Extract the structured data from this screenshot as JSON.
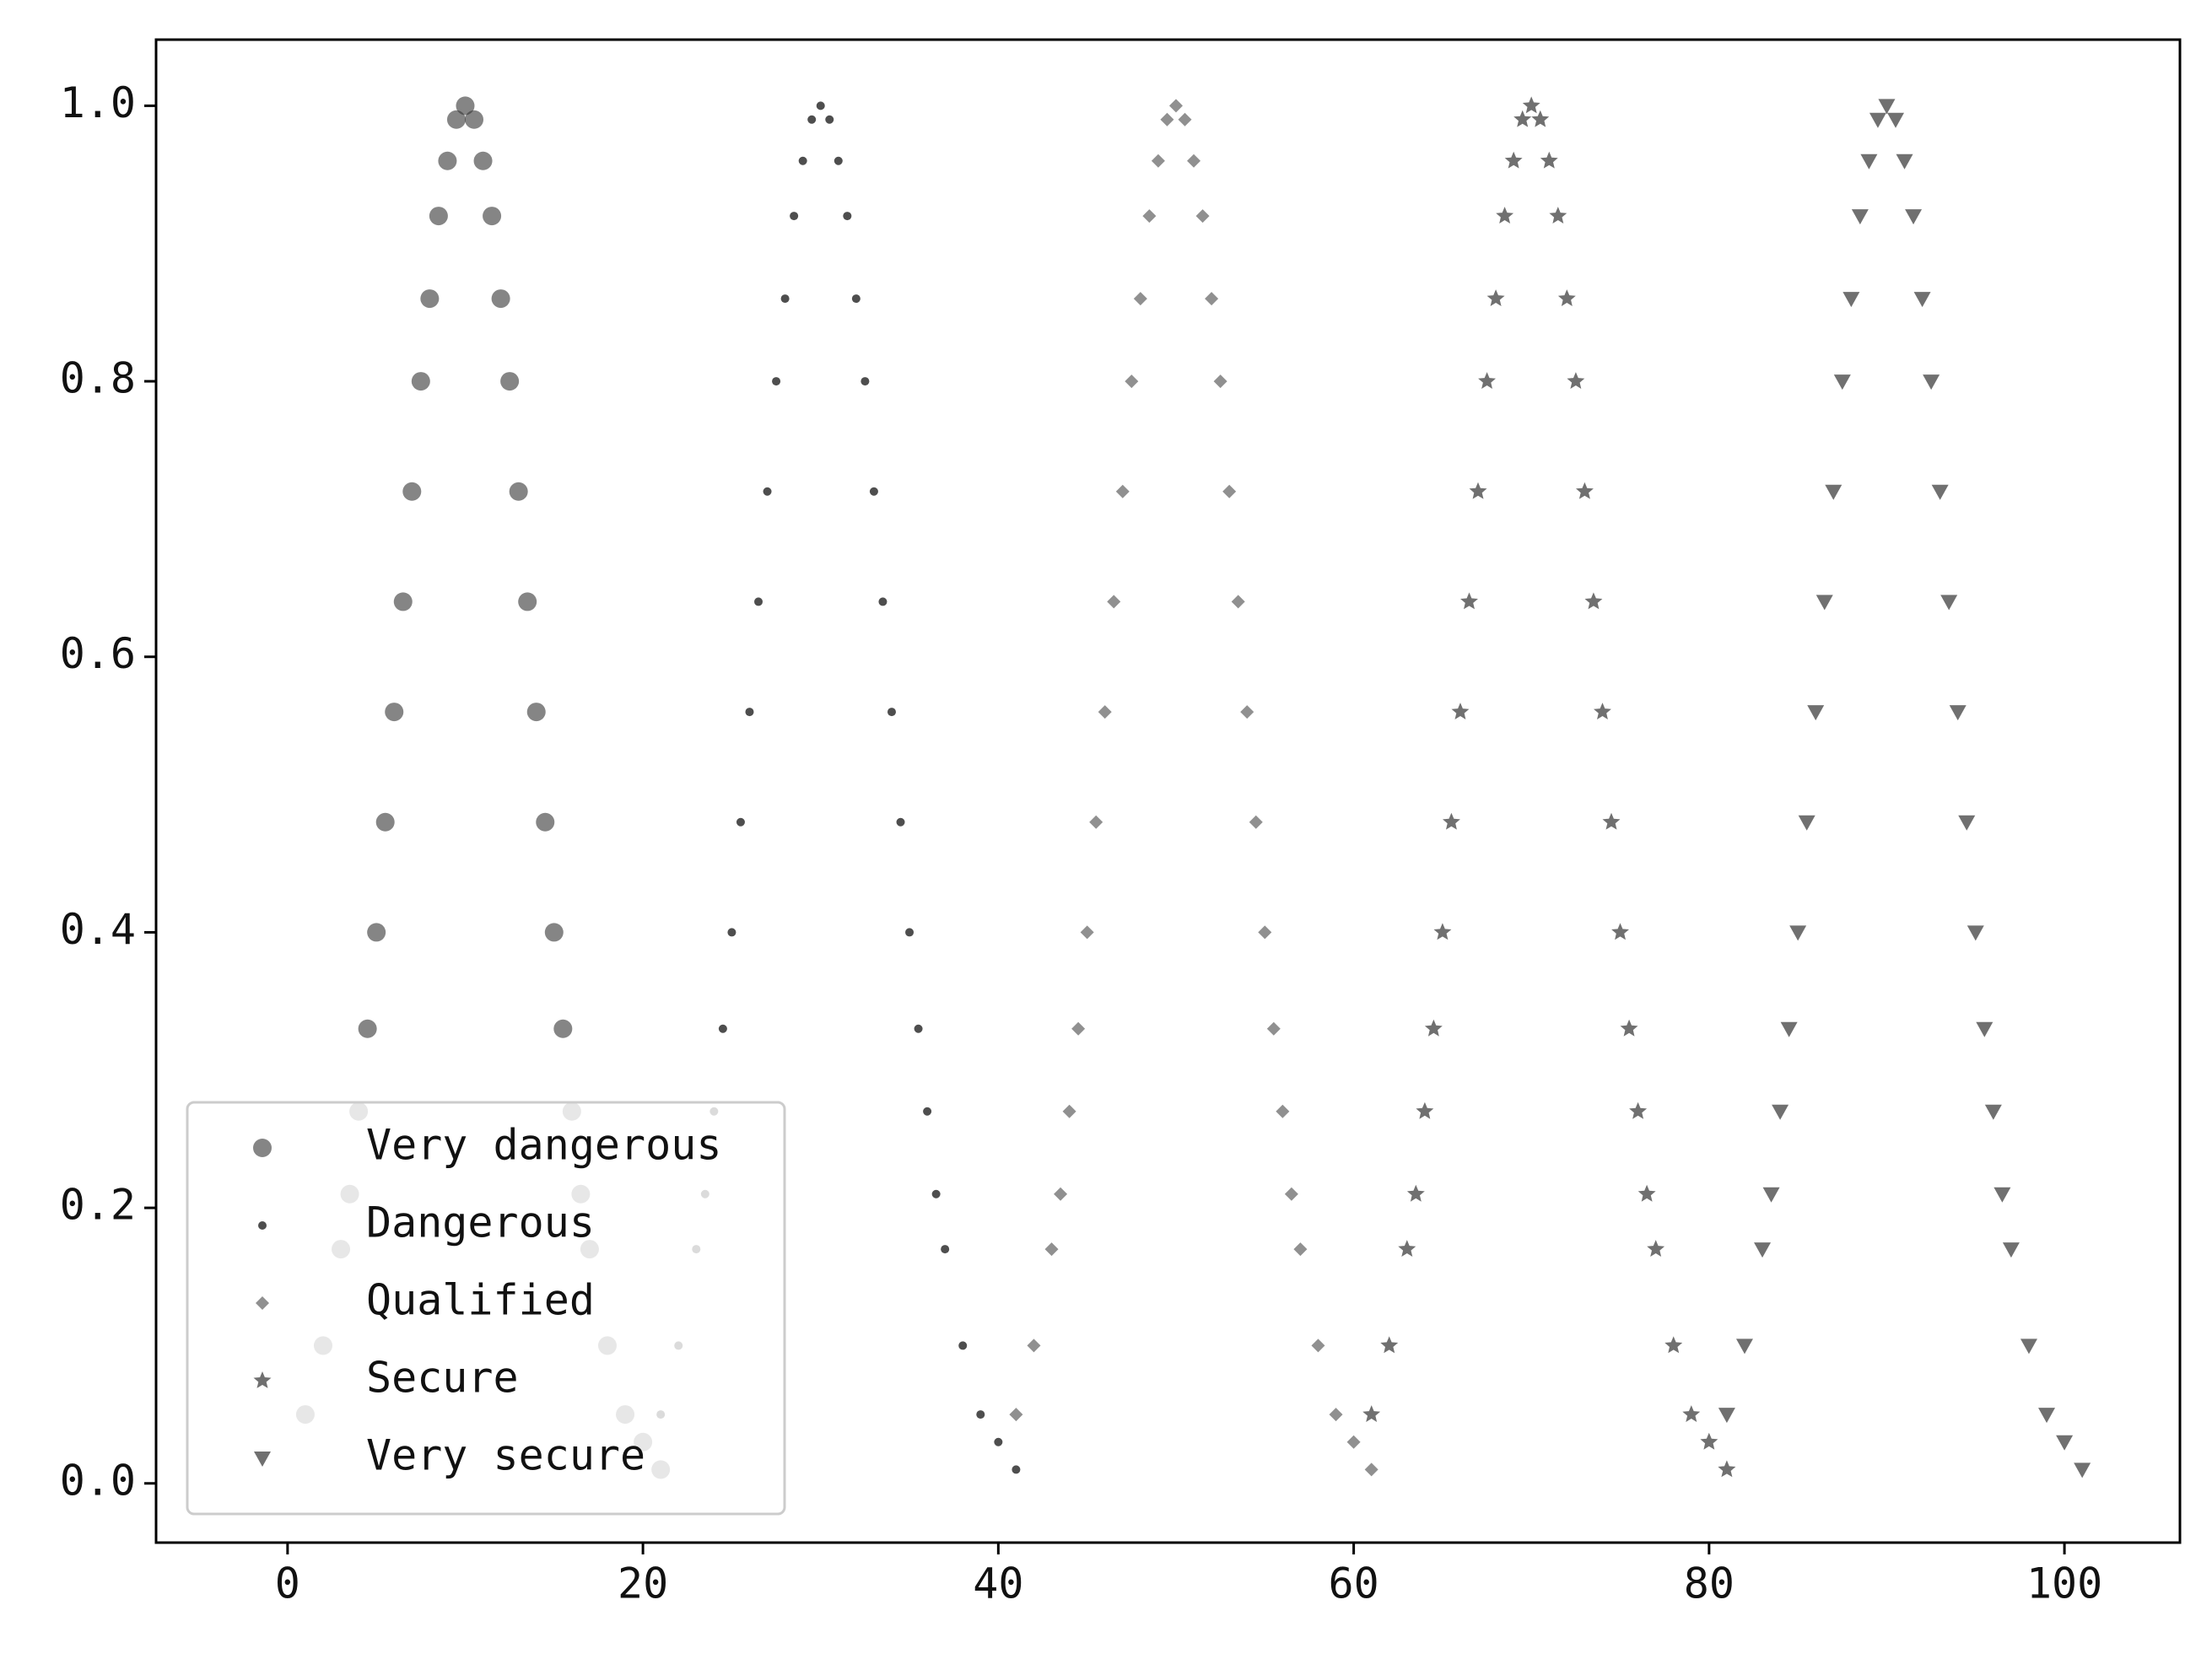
{
  "chart_data": {
    "type": "scatter",
    "xlim": [
      -7.4,
      106.5
    ],
    "ylim": [
      -0.043,
      1.048
    ],
    "xticks": [
      0,
      20,
      40,
      60,
      80,
      100
    ],
    "yticks": [
      {
        "value": 0,
        "label": "0.0"
      },
      0.2,
      0.4,
      0.6,
      0.8,
      {
        "value": 1,
        "label": "1.0"
      }
    ],
    "grid": false,
    "legend": "lower left",
    "series": [
      {
        "name": "Very dangerous",
        "color": "#333333",
        "marker": "circle",
        "x": [
          1,
          2,
          3,
          3.5,
          4,
          4.5,
          5,
          5.5,
          6,
          6.5,
          7,
          7.5,
          8,
          8.5,
          9,
          9.5,
          10,
          10.5,
          11,
          11.5,
          12,
          12.5,
          13,
          13.5,
          14,
          14.5,
          15,
          15.5,
          16,
          16.5,
          17,
          18,
          19,
          20,
          21
        ],
        "values": [
          0.05,
          0.1,
          0.17,
          0.21,
          0.27,
          0.33,
          0.4,
          0.48,
          0.56,
          0.64,
          0.72,
          0.8,
          0.86,
          0.92,
          0.96,
          0.99,
          1.0,
          0.99,
          0.96,
          0.92,
          0.86,
          0.8,
          0.72,
          0.64,
          0.56,
          0.48,
          0.4,
          0.33,
          0.27,
          0.21,
          0.17,
          0.1,
          0.05,
          0.03,
          0.01
        ]
      },
      {
        "name": "Dangerous",
        "color": "#222222",
        "marker": "point",
        "x": [
          21,
          22,
          23,
          23.5,
          24,
          24.5,
          25,
          25.5,
          26,
          26.5,
          27,
          27.5,
          28,
          28.5,
          29,
          29.5,
          30,
          30.5,
          31,
          31.5,
          32,
          32.5,
          33,
          33.5,
          34,
          34.5,
          35,
          35.5,
          36,
          36.5,
          37,
          38,
          39,
          40,
          41
        ],
        "values": [
          0.05,
          0.1,
          0.17,
          0.21,
          0.27,
          0.33,
          0.4,
          0.48,
          0.56,
          0.64,
          0.72,
          0.8,
          0.86,
          0.92,
          0.96,
          0.99,
          1.0,
          0.99,
          0.96,
          0.92,
          0.86,
          0.8,
          0.72,
          0.64,
          0.56,
          0.48,
          0.4,
          0.33,
          0.27,
          0.21,
          0.17,
          0.1,
          0.05,
          0.03,
          0.01
        ]
      },
      {
        "name": "Qualified",
        "color": "#555555",
        "marker": "diamond",
        "x": [
          41,
          42,
          43,
          43.5,
          44,
          44.5,
          45,
          45.5,
          46,
          46.5,
          47,
          47.5,
          48,
          48.5,
          49,
          49.5,
          50,
          50.5,
          51,
          51.5,
          52,
          52.5,
          53,
          53.5,
          54,
          54.5,
          55,
          55.5,
          56,
          56.5,
          57,
          58,
          59,
          60,
          61
        ],
        "values": [
          0.05,
          0.1,
          0.17,
          0.21,
          0.27,
          0.33,
          0.4,
          0.48,
          0.56,
          0.64,
          0.72,
          0.8,
          0.86,
          0.92,
          0.96,
          0.99,
          1.0,
          0.99,
          0.96,
          0.92,
          0.86,
          0.8,
          0.72,
          0.64,
          0.56,
          0.48,
          0.4,
          0.33,
          0.27,
          0.21,
          0.17,
          0.1,
          0.05,
          0.03,
          0.01
        ]
      },
      {
        "name": "Secure",
        "color": "#333333",
        "marker": "star",
        "x": [
          61,
          62,
          63,
          63.5,
          64,
          64.5,
          65,
          65.5,
          66,
          66.5,
          67,
          67.5,
          68,
          68.5,
          69,
          69.5,
          70,
          70.5,
          71,
          71.5,
          72,
          72.5,
          73,
          73.5,
          74,
          74.5,
          75,
          75.5,
          76,
          76.5,
          77,
          78,
          79,
          80,
          81
        ],
        "values": [
          0.05,
          0.1,
          0.17,
          0.21,
          0.27,
          0.33,
          0.4,
          0.48,
          0.56,
          0.64,
          0.72,
          0.8,
          0.86,
          0.92,
          0.96,
          0.99,
          1.0,
          0.99,
          0.96,
          0.92,
          0.86,
          0.8,
          0.72,
          0.64,
          0.56,
          0.48,
          0.4,
          0.33,
          0.27,
          0.21,
          0.17,
          0.1,
          0.05,
          0.03,
          0.01
        ]
      },
      {
        "name": "Very secure",
        "color": "#333333",
        "marker": "triangle_down",
        "x": [
          81,
          82,
          83,
          83.5,
          84,
          84.5,
          85,
          85.5,
          86,
          86.5,
          87,
          87.5,
          88,
          88.5,
          89,
          89.5,
          90,
          90.5,
          91,
          91.5,
          92,
          92.5,
          93,
          93.5,
          94,
          94.5,
          95,
          95.5,
          96,
          96.5,
          97,
          98,
          99,
          100,
          101
        ],
        "values": [
          0.05,
          0.1,
          0.17,
          0.21,
          0.27,
          0.33,
          0.4,
          0.48,
          0.56,
          0.64,
          0.72,
          0.8,
          0.86,
          0.92,
          0.96,
          0.99,
          1.0,
          0.99,
          0.96,
          0.92,
          0.86,
          0.8,
          0.72,
          0.64,
          0.56,
          0.48,
          0.4,
          0.33,
          0.27,
          0.21,
          0.17,
          0.1,
          0.05,
          0.03,
          0.01
        ]
      }
    ]
  }
}
